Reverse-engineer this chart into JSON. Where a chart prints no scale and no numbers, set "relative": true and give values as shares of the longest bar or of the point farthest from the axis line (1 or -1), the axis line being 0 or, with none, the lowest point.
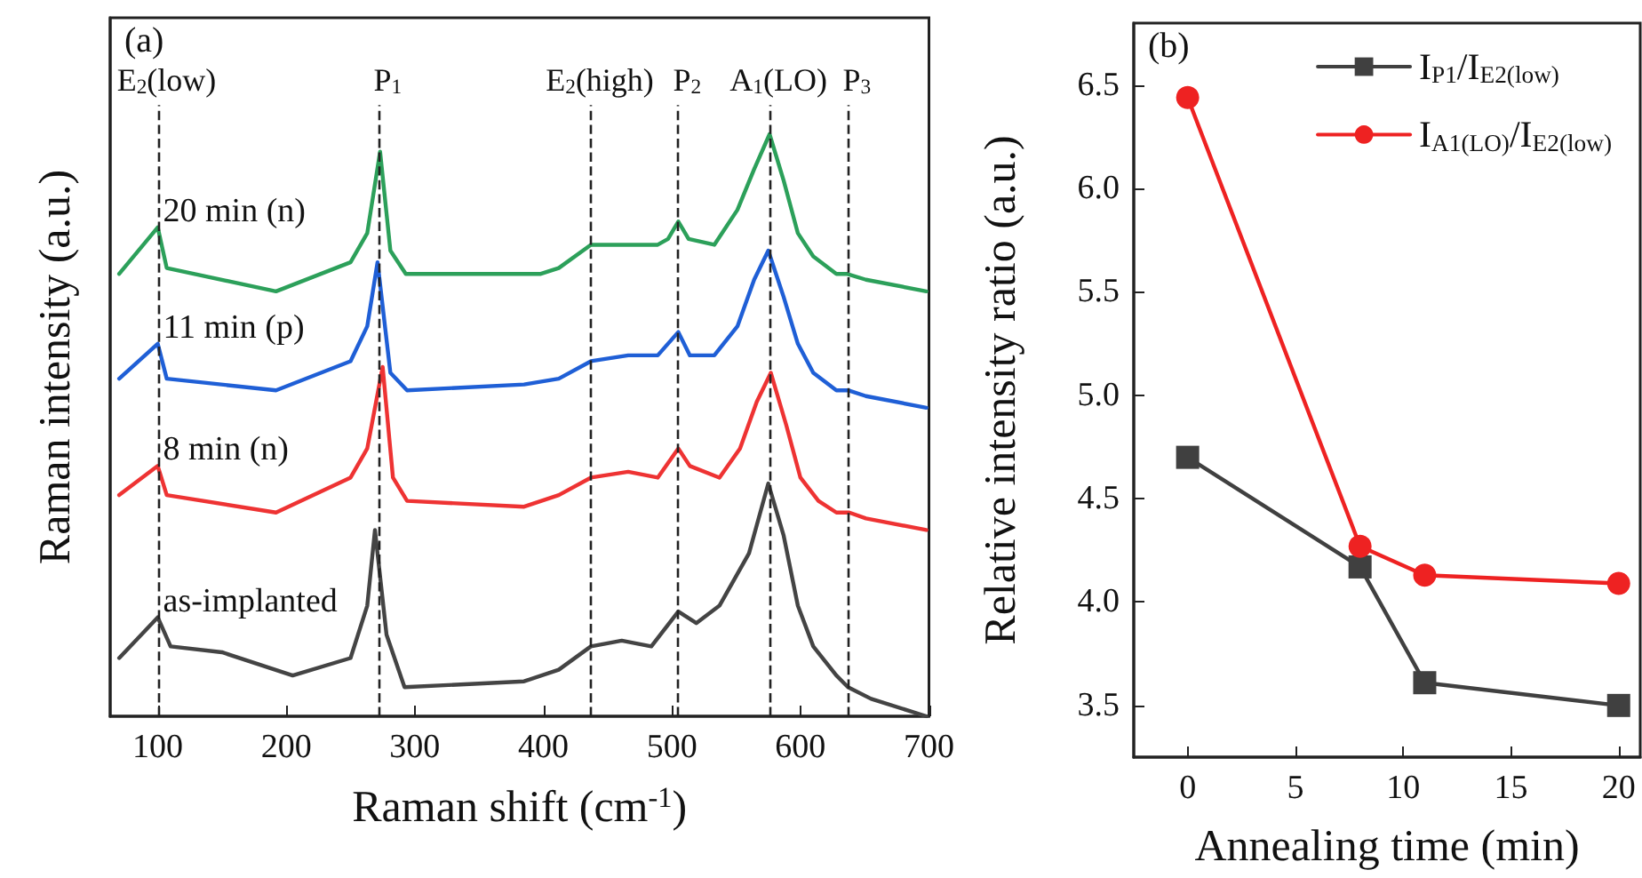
{
  "chart_data": [
    {
      "type": "line",
      "title": "(a)",
      "xlabel": "Raman shift (cm$^{-1}$)",
      "ylabel": "Raman intensity (a.u.)",
      "relative": true,
      "tick_labels": "x",
      "xlim": [
        63,
        700
      ],
      "xticks": [
        100,
        200,
        300,
        400,
        500,
        600,
        700
      ],
      "marker": "none",
      "line_style": "solid",
      "ref_lines": [
        {
          "axis": "x",
          "value": 100,
          "label": "E$_{2}$(low)",
          "color": "#222222",
          "line_style": "dashed"
        },
        {
          "axis": "x",
          "value": 272,
          "label": "P$_{1}$",
          "color": "#222222",
          "line_style": "dashed"
        },
        {
          "axis": "x",
          "value": 437,
          "label": "E$_{2}$(high)",
          "color": "#222222",
          "line_style": "dashed"
        },
        {
          "axis": "x",
          "value": 505,
          "label": "P$_{2}$",
          "color": "#222222",
          "line_style": "dashed"
        },
        {
          "axis": "x",
          "value": 576,
          "label": "A$_{1}$(LO)",
          "color": "#222222",
          "line_style": "dashed"
        },
        {
          "axis": "x",
          "value": 637,
          "label": "P$_{3}$",
          "color": "#222222",
          "line_style": "dashed"
        }
      ],
      "series": [
        {
          "name": "20 min (n)",
          "color": "#2ca05a",
          "x": [
            70,
            100,
            107,
            192,
            250,
            263,
            273,
            281,
            293,
            385,
            398,
            412,
            437,
            466,
            489,
            497,
            505,
            513,
            533,
            551,
            564,
            576,
            587,
            598,
            610,
            628,
            636,
            651,
            698
          ],
          "values": [
            0.76,
            0.84,
            0.77,
            0.73,
            0.78,
            0.83,
            0.97,
            0.8,
            0.76,
            0.76,
            0.76,
            0.77,
            0.81,
            0.81,
            0.81,
            0.82,
            0.85,
            0.82,
            0.81,
            0.87,
            0.94,
            1.0,
            0.92,
            0.83,
            0.79,
            0.76,
            0.76,
            0.75,
            0.73
          ]
        },
        {
          "name": "11 min (p)",
          "color": "#1f5fd6",
          "x": [
            70,
            100,
            107,
            192,
            250,
            263,
            271,
            281,
            294,
            385,
            412,
            437,
            466,
            489,
            505,
            514,
            533,
            551,
            564,
            575,
            587,
            598,
            610,
            628,
            637,
            651,
            698
          ],
          "values": [
            0.58,
            0.64,
            0.58,
            0.56,
            0.61,
            0.67,
            0.78,
            0.59,
            0.56,
            0.57,
            0.58,
            0.61,
            0.62,
            0.62,
            0.66,
            0.62,
            0.62,
            0.67,
            0.75,
            0.8,
            0.72,
            0.64,
            0.59,
            0.56,
            0.56,
            0.55,
            0.53
          ]
        },
        {
          "name": "8 min (n)",
          "color": "#ee3333",
          "x": [
            70,
            100,
            107,
            192,
            250,
            263,
            275,
            283,
            294,
            385,
            412,
            437,
            466,
            489,
            505,
            514,
            537,
            553,
            566,
            577,
            589,
            600,
            614,
            628,
            638,
            651,
            698
          ],
          "values": [
            0.38,
            0.43,
            0.38,
            0.35,
            0.41,
            0.46,
            0.6,
            0.41,
            0.37,
            0.36,
            0.38,
            0.41,
            0.42,
            0.41,
            0.46,
            0.43,
            0.41,
            0.46,
            0.54,
            0.59,
            0.5,
            0.41,
            0.37,
            0.35,
            0.35,
            0.34,
            0.32
          ]
        },
        {
          "name": "as-implanted",
          "color": "#444444",
          "x": [
            70,
            100,
            110,
            150,
            205,
            250,
            263,
            269,
            278,
            292,
            385,
            412,
            437,
            461,
            484,
            505,
            519,
            537,
            560,
            575,
            587,
            598,
            610,
            628,
            637,
            655,
            698
          ],
          "values": [
            0.1,
            0.17,
            0.12,
            0.11,
            0.07,
            0.1,
            0.19,
            0.32,
            0.14,
            0.05,
            0.06,
            0.08,
            0.12,
            0.13,
            0.12,
            0.18,
            0.16,
            0.19,
            0.28,
            0.4,
            0.31,
            0.19,
            0.12,
            0.07,
            0.05,
            0.03,
            0.0
          ]
        }
      ]
    },
    {
      "type": "line",
      "title": "(b)",
      "xlabel": "Annealing time (min)",
      "ylabel": "Relative intensity ratio (a.u.)",
      "xlim": [
        -2.5,
        21
      ],
      "xticks": [
        0,
        5,
        10,
        15,
        20
      ],
      "ylim": [
        3.25,
        6.8
      ],
      "yticks": [
        3.5,
        {
          "value": 4,
          "label": "4.0"
        },
        4.5,
        {
          "value": 5,
          "label": "5.0"
        },
        5.5,
        {
          "value": 6,
          "label": "6.0"
        },
        6.5
      ],
      "legend": "top right",
      "line_style": "solid",
      "x": [
        0,
        8,
        11,
        20
      ],
      "series": [
        {
          "name": "I$_{P1}$/I$_{E2(low)}$",
          "color": "#404040",
          "marker": "square",
          "values": [
            4.7,
            4.17,
            3.61,
            3.5
          ]
        },
        {
          "name": "I$_{A1(LO)}$/I$_{E2(low)}$",
          "color": "#ee2222",
          "marker": "circle",
          "values": [
            6.44,
            4.27,
            4.13,
            4.09
          ]
        }
      ]
    }
  ]
}
